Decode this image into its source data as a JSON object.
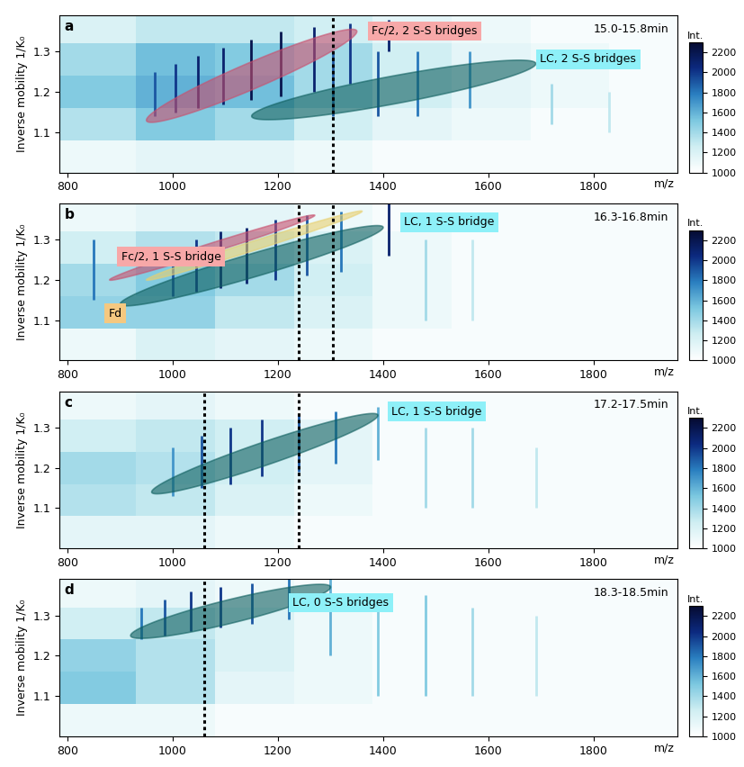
{
  "chart_data": [
    {
      "type": "heatmap",
      "title": "a",
      "subtitle": "15.0-15.8min",
      "x_label": "m/z",
      "y_label": "Inverse mobility 1/K₀",
      "xlim": [
        785,
        1960
      ],
      "ylim": [
        1.0,
        1.39
      ],
      "xticks": [
        800,
        1000,
        1200,
        1400,
        1600,
        1800
      ],
      "yticks": [
        1.1,
        1.2,
        1.3
      ],
      "cells": {
        "x_edges": [
          780,
          930,
          1080,
          1230,
          1380,
          1530,
          1680,
          1830,
          1980
        ],
        "y_edges": [
          1.0,
          1.08,
          1.16,
          1.24,
          1.32,
          1.4
        ],
        "values": [
          [
            1100,
            1150,
            1150,
            1100,
            1050,
            1050,
            1050,
            1050
          ],
          [
            1350,
            1500,
            1400,
            1250,
            1150,
            1100,
            1050,
            1050
          ],
          [
            1500,
            1600,
            1550,
            1400,
            1250,
            1150,
            1100,
            1050
          ],
          [
            1400,
            1550,
            1500,
            1400,
            1250,
            1150,
            1100,
            1050
          ],
          [
            1200,
            1300,
            1300,
            1250,
            1150,
            1100,
            1050,
            1050
          ]
        ]
      },
      "peaks": {
        "mz": [
          965,
          1005,
          1048,
          1095,
          1148,
          1205,
          1268,
          1336,
          1305,
          1390,
          1410,
          1465,
          1565,
          1720,
          1830
        ],
        "ymin": [
          1.14,
          1.15,
          1.16,
          1.17,
          1.18,
          1.19,
          1.2,
          1.22,
          1.14,
          1.14,
          1.3,
          1.14,
          1.16,
          1.12,
          1.1
        ],
        "ymax": [
          1.25,
          1.27,
          1.29,
          1.31,
          1.33,
          1.35,
          1.36,
          1.37,
          1.3,
          1.3,
          1.38,
          1.3,
          1.3,
          1.22,
          1.2
        ],
        "intensity": [
          1900,
          2000,
          2100,
          2100,
          2200,
          2200,
          2100,
          2000,
          1900,
          1900,
          2100,
          1800,
          1700,
          1400,
          1300
        ]
      },
      "regions": [
        {
          "label": "Fc/2, 2 S-S bridges",
          "colors": [
            "#c8506e",
            "#f7a8a8"
          ],
          "from": [
            950,
            1.13
          ],
          "to": [
            1350,
            1.35
          ],
          "width": 0.035
        },
        {
          "label": "LC, 2 S-S bridges",
          "colors": [
            "#0f5f5f",
            "#8ef0f8"
          ],
          "from": [
            1150,
            1.14
          ],
          "to": [
            1690,
            1.27
          ],
          "width": 0.035
        }
      ],
      "reference_mz": [
        1305
      ],
      "colorbar": {
        "title": "Int.",
        "range": [
          1000,
          2300
        ],
        "ticks": [
          1000,
          1200,
          1400,
          1600,
          1800,
          2000,
          2200
        ]
      }
    },
    {
      "type": "heatmap",
      "title": "b",
      "subtitle": "16.3-16.8min",
      "x_label": "m/z",
      "y_label": "Inverse mobility 1/K₀",
      "xlim": [
        785,
        1960
      ],
      "ylim": [
        1.0,
        1.39
      ],
      "xticks": [
        800,
        1000,
        1200,
        1400,
        1600,
        1800
      ],
      "yticks": [
        1.1,
        1.2,
        1.3
      ],
      "cells": {
        "x_edges": [
          780,
          930,
          1080,
          1230,
          1380,
          1530,
          1680,
          1830,
          1980
        ],
        "y_edges": [
          1.0,
          1.08,
          1.16,
          1.24,
          1.32,
          1.4
        ],
        "values": [
          [
            1100,
            1200,
            1150,
            1100,
            1050,
            1050,
            1050,
            1050
          ],
          [
            1450,
            1450,
            1300,
            1200,
            1100,
            1050,
            1050,
            1050
          ],
          [
            1400,
            1500,
            1400,
            1250,
            1100,
            1050,
            1050,
            1050
          ],
          [
            1250,
            1350,
            1300,
            1200,
            1100,
            1050,
            1050,
            1050
          ],
          [
            1100,
            1150,
            1150,
            1100,
            1050,
            1050,
            1050,
            1050
          ]
        ]
      },
      "peaks": {
        "mz": [
          850,
          1000,
          1045,
          1090,
          1140,
          1195,
          1255,
          1320,
          1410,
          1480,
          1570
        ],
        "ymin": [
          1.15,
          1.16,
          1.17,
          1.18,
          1.19,
          1.2,
          1.21,
          1.22,
          1.26,
          1.1,
          1.1
        ],
        "ymax": [
          1.3,
          1.28,
          1.3,
          1.32,
          1.33,
          1.35,
          1.36,
          1.37,
          1.39,
          1.3,
          1.3
        ],
        "intensity": [
          1800,
          1900,
          2000,
          2100,
          2100,
          2000,
          1900,
          1800,
          2100,
          1400,
          1300
        ]
      },
      "regions": [
        {
          "label": "LC, 1 S-S bridge",
          "colors": [
            "#0f5f5f",
            "#8ef0f8"
          ],
          "from": [
            900,
            1.14
          ],
          "to": [
            1400,
            1.33
          ],
          "width": 0.03
        },
        {
          "label": "Fc/2, 1 S-S bridge",
          "colors": [
            "#c8506e",
            "#f7a8a8"
          ],
          "from": [
            880,
            1.2
          ],
          "to": [
            1270,
            1.36
          ],
          "width": 0.012
        },
        {
          "label": "Fd",
          "colors": [
            "#e8d070",
            "#f5c880"
          ],
          "from": [
            950,
            1.2
          ],
          "to": [
            1360,
            1.37
          ],
          "width": 0.012
        }
      ],
      "reference_mz": [
        1240,
        1305
      ],
      "colorbar": {
        "title": "Int.",
        "range": [
          1000,
          2300
        ],
        "ticks": [
          1000,
          1200,
          1400,
          1600,
          1800,
          2000,
          2200
        ]
      }
    },
    {
      "type": "heatmap",
      "title": "c",
      "subtitle": "17.2-17.5min",
      "x_label": "m/z",
      "y_label": "Inverse mobility 1/K₀",
      "xlim": [
        785,
        1960
      ],
      "ylim": [
        1.0,
        1.39
      ],
      "xticks": [
        800,
        1000,
        1200,
        1400,
        1600,
        1800
      ],
      "yticks": [
        1.1,
        1.2,
        1.3
      ],
      "cells": {
        "x_edges": [
          780,
          930,
          1080,
          1230,
          1380,
          1530,
          1680,
          1830,
          1980
        ],
        "y_edges": [
          1.0,
          1.08,
          1.16,
          1.24,
          1.32,
          1.4
        ],
        "values": [
          [
            1150,
            1150,
            1100,
            1050,
            1050,
            1050,
            1050,
            1050
          ],
          [
            1350,
            1300,
            1200,
            1100,
            1050,
            1050,
            1050,
            1050
          ],
          [
            1400,
            1350,
            1250,
            1150,
            1050,
            1050,
            1050,
            1050
          ],
          [
            1250,
            1300,
            1250,
            1150,
            1050,
            1050,
            1050,
            1050
          ],
          [
            1100,
            1150,
            1100,
            1050,
            1050,
            1050,
            1050,
            1050
          ]
        ]
      },
      "peaks": {
        "mz": [
          1000,
          1055,
          1110,
          1170,
          1240,
          1310,
          1390,
          1480,
          1570,
          1690
        ],
        "ymin": [
          1.13,
          1.15,
          1.16,
          1.18,
          1.19,
          1.21,
          1.22,
          1.1,
          1.1,
          1.1
        ],
        "ymax": [
          1.25,
          1.28,
          1.3,
          1.32,
          1.33,
          1.34,
          1.35,
          1.3,
          1.3,
          1.25
        ],
        "intensity": [
          1700,
          1900,
          2000,
          2000,
          1900,
          1800,
          1600,
          1400,
          1400,
          1300
        ]
      },
      "regions": [
        {
          "label": "LC, 1 S-S bridge",
          "colors": [
            "#0f5f5f",
            "#8ef0f8"
          ],
          "from": [
            960,
            1.14
          ],
          "to": [
            1390,
            1.33
          ],
          "width": 0.03
        }
      ],
      "reference_mz": [
        1060,
        1240
      ],
      "colorbar": {
        "title": "Int.",
        "range": [
          1000,
          2300
        ],
        "ticks": [
          1000,
          1200,
          1400,
          1600,
          1800,
          2000,
          2200
        ]
      }
    },
    {
      "type": "heatmap",
      "title": "d",
      "subtitle": "18.3-18.5min",
      "x_label": "m/z",
      "y_label": "Inverse mobility 1/K₀",
      "xlim": [
        785,
        1960
      ],
      "ylim": [
        1.0,
        1.39
      ],
      "xticks": [
        800,
        1000,
        1200,
        1400,
        1600,
        1800
      ],
      "yticks": [
        1.1,
        1.2,
        1.3
      ],
      "cells": {
        "x_edges": [
          780,
          930,
          1080,
          1230,
          1380,
          1530,
          1680,
          1830,
          1980
        ],
        "y_edges": [
          1.0,
          1.08,
          1.16,
          1.24,
          1.32,
          1.4
        ],
        "values": [
          [
            1100,
            1100,
            1050,
            1050,
            1050,
            1050,
            1050,
            1050
          ],
          [
            1500,
            1350,
            1150,
            1100,
            1050,
            1050,
            1050,
            1050
          ],
          [
            1450,
            1350,
            1200,
            1100,
            1050,
            1050,
            1050,
            1050
          ],
          [
            1250,
            1300,
            1200,
            1100,
            1050,
            1050,
            1050,
            1050
          ],
          [
            1100,
            1150,
            1100,
            1050,
            1050,
            1050,
            1050,
            1050
          ]
        ]
      },
      "peaks": {
        "mz": [
          940,
          985,
          1035,
          1090,
          1150,
          1220,
          1300,
          1390,
          1480,
          1570,
          1690
        ],
        "ymin": [
          1.24,
          1.25,
          1.26,
          1.27,
          1.28,
          1.29,
          1.2,
          1.1,
          1.1,
          1.1,
          1.1
        ],
        "ymax": [
          1.32,
          1.34,
          1.36,
          1.37,
          1.38,
          1.39,
          1.39,
          1.35,
          1.35,
          1.32,
          1.3
        ],
        "intensity": [
          1800,
          1900,
          2000,
          2000,
          1900,
          1800,
          1600,
          1500,
          1500,
          1400,
          1300
        ]
      },
      "regions": [
        {
          "label": "LC, 0 S-S bridges",
          "colors": [
            "#0f5f5f",
            "#8ef0f8"
          ],
          "from": [
            920,
            1.25
          ],
          "to": [
            1300,
            1.37
          ],
          "width": 0.03
        }
      ],
      "reference_mz": [
        1060
      ],
      "colorbar": {
        "title": "Int.",
        "range": [
          1000,
          2300
        ],
        "ticks": [
          1000,
          1200,
          1400,
          1600,
          1800,
          2000,
          2200
        ]
      }
    }
  ]
}
